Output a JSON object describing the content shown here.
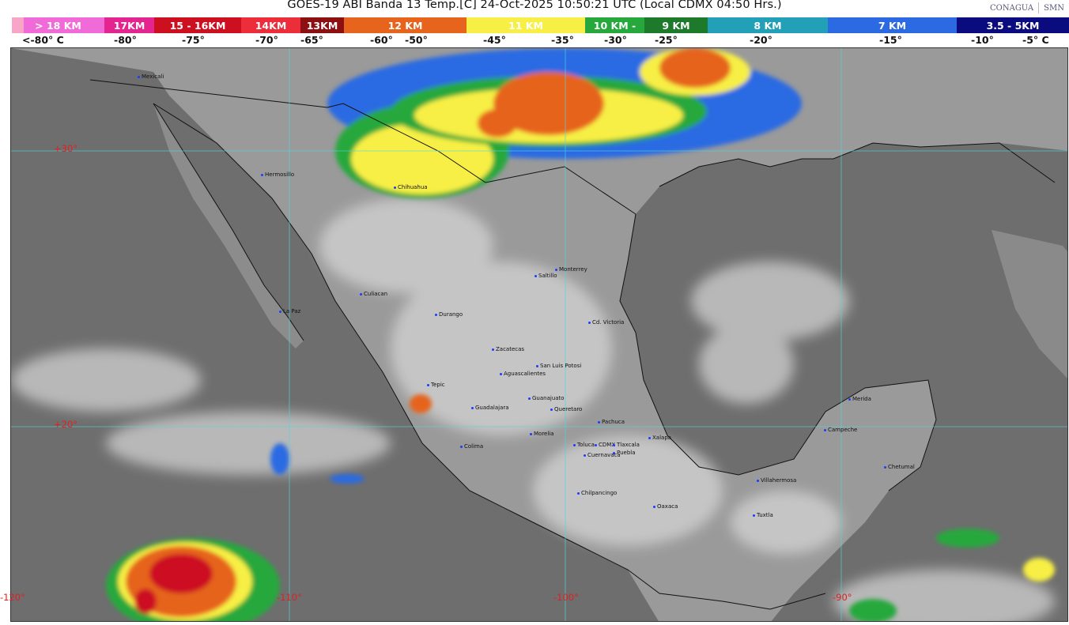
{
  "header": {
    "title": "GOES-19 ABI Banda 13 Temp.[C] 24-Oct-2025 10:50:21 UTC (Local CDMX  04:50 Hrs.)",
    "logos": [
      "CONAGUA",
      "SMN"
    ]
  },
  "legend": {
    "segments": [
      {
        "label": "> 18 KM",
        "color": "#f06ad8"
      },
      {
        "label": "17KM",
        "color": "#e4258f"
      },
      {
        "label": "15 - 16KM",
        "color": "#cc1020"
      },
      {
        "label": "14KM",
        "color": "#ee2d3a"
      },
      {
        "label": "13KM",
        "color": "#8c0f12"
      },
      {
        "label": "12 KM",
        "color": "#e6641c"
      },
      {
        "label": "11 KM",
        "color": "#f7ef45"
      },
      {
        "label": "10 KM -",
        "color": "#26a83c"
      },
      {
        "label": "9 KM",
        "color": "#1c7a2a"
      },
      {
        "label": "8 KM",
        "color": "#22a0b8"
      },
      {
        "label": "7 KM",
        "color": "#2b6ae2"
      },
      {
        "label": "3.5 - 5KM",
        "color": "#0b0b80"
      }
    ],
    "temps": [
      "<-80° C",
      "-80°",
      "-75°",
      "-70°",
      "-65°",
      "-60°",
      "-50°",
      "-45°",
      "-35°",
      "-30°",
      "-25°",
      "-20°",
      "-15°",
      "-10°",
      "-5°  C"
    ]
  },
  "map": {
    "grid_labels": {
      "lat": [
        "+30°",
        "+20°"
      ],
      "lon": [
        "-120°",
        "-110°",
        "-100°",
        "-90°"
      ]
    },
    "cities": [
      "Mexicali",
      "Hermosillo",
      "Chihuahua",
      "Monterrey",
      "Saltillo",
      "Culiacan",
      "La Paz",
      "Durango",
      "Cd. Victoria",
      "Zacatecas",
      "San Luis Potosi",
      "Aguascalientes",
      "Tepic",
      "Guadalajara",
      "Guanajuato",
      "Queretaro",
      "Merida",
      "Pachuca",
      "Campeche",
      "Morelia",
      "Xalapa",
      "Colima",
      "Toluca",
      "CDMX",
      "Tlaxcala",
      "Puebla",
      "Cuernavaca",
      "Chetumal",
      "Villahermosa",
      "Chilpancingo",
      "Oaxaca",
      "Tuxtla"
    ]
  }
}
